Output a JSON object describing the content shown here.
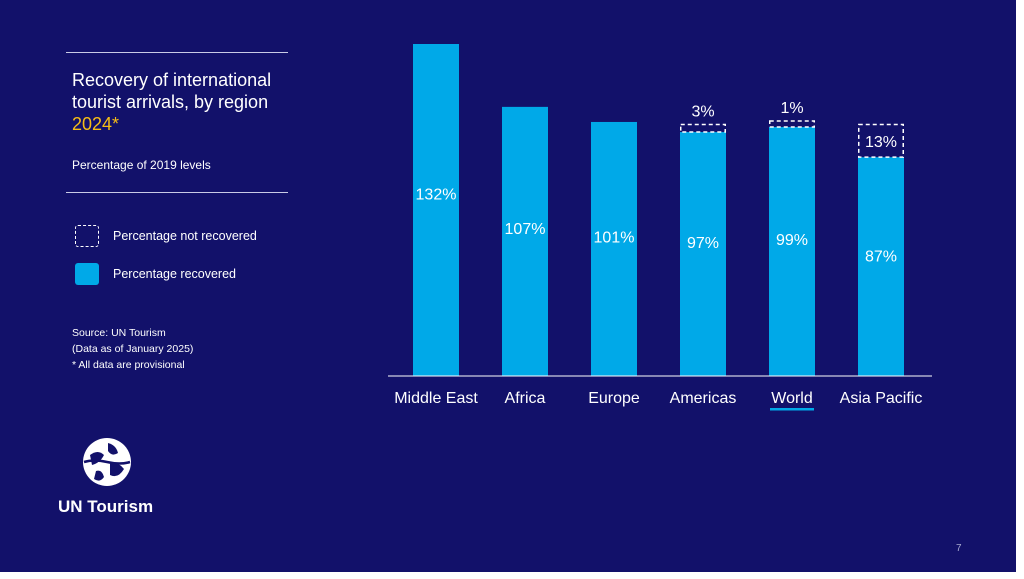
{
  "title": {
    "line1": "Recovery of international",
    "line2": "tourist arrivals, by region",
    "year": "2024*"
  },
  "subtitle": "Percentage of 2019 levels",
  "legend": [
    {
      "label": "Percentage not recovered",
      "style": "dashed"
    },
    {
      "label": "Percentage recovered",
      "style": "solid"
    }
  ],
  "source": {
    "line1": "Source: UN Tourism",
    "line2": "(Data as of January 2025)",
    "line3": "* All data are provisional"
  },
  "logo_text": "UN Tourism",
  "page_number": "7",
  "colors": {
    "background": "#12116a",
    "bar": "#00a9e8",
    "year_accent": "#f6bd16",
    "highlight_underline": "#00a9e8"
  },
  "chart_data": {
    "type": "bar",
    "categories": [
      "Middle East",
      "Africa",
      "Europe",
      "Americas",
      "World",
      "Asia Pacific"
    ],
    "series": [
      {
        "name": "Percentage recovered",
        "values": [
          132,
          107,
          101,
          97,
          99,
          87
        ],
        "labels": [
          "132%",
          "107%",
          "101%",
          "97%",
          "99%",
          "87%"
        ]
      },
      {
        "name": "Percentage not recovered",
        "values": [
          0,
          0,
          0,
          3,
          1,
          13
        ],
        "labels": [
          "",
          "",
          "",
          "3%",
          "1%",
          "13%"
        ]
      }
    ],
    "highlighted_category": "World",
    "ylim": [
      0,
      132
    ],
    "grid": false,
    "axis_y_visible": false
  }
}
